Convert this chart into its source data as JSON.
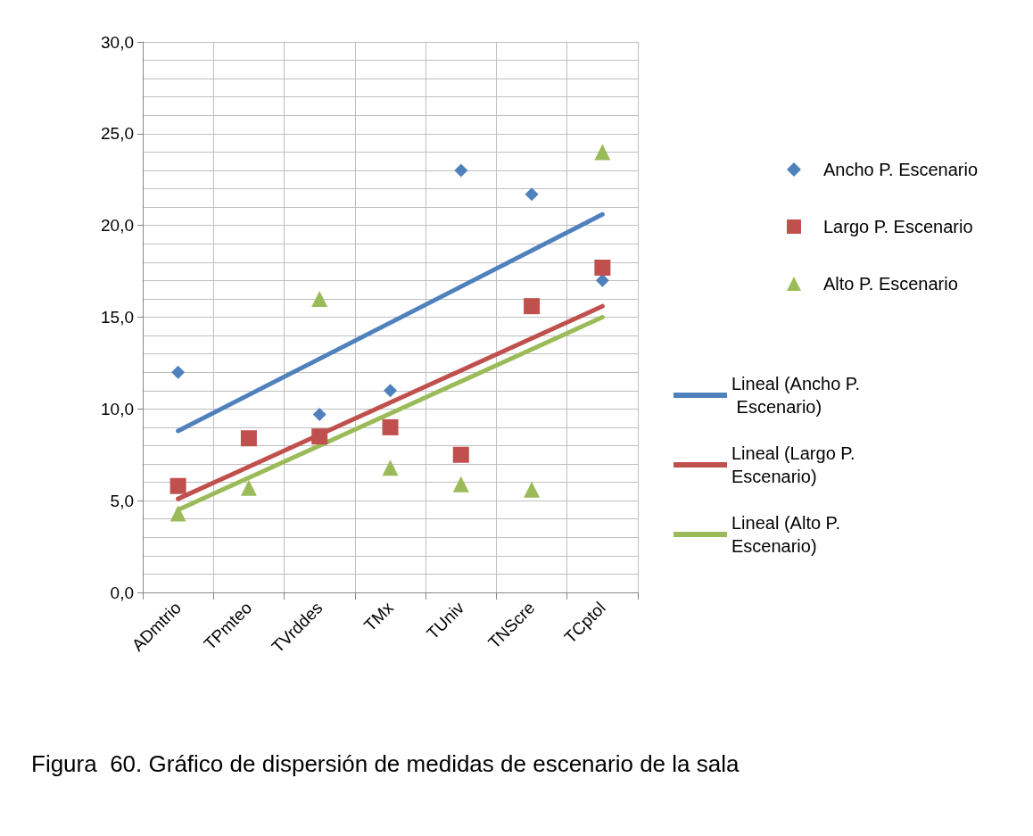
{
  "chart_data": {
    "type": "scatter",
    "categories": [
      "ADmtrio",
      "TPmteo",
      "TVrddes",
      "TMx",
      "TUniv",
      "TNScre",
      "TCptol"
    ],
    "series": [
      {
        "name": "Ancho P. Escenario",
        "color": "#4f81bd",
        "marker": "diamond",
        "values": [
          12.0,
          null,
          9.7,
          11.0,
          23.0,
          21.7,
          17.0
        ]
      },
      {
        "name": "Largo P. Escenario",
        "color": "#c0504d",
        "marker": "square",
        "values": [
          5.8,
          8.4,
          8.5,
          9.0,
          7.5,
          15.6,
          17.7
        ]
      },
      {
        "name": "Alto P. Escenario",
        "color": "#9bbb59",
        "marker": "triangle",
        "values": [
          4.3,
          5.7,
          16.0,
          6.8,
          5.9,
          5.6,
          24.0
        ]
      },
      {
        "name": "Lineal (Ancho P. Escenario)",
        "type": "line",
        "color": "#4f81bd",
        "marker": "none",
        "x": [
          "ADmtrio",
          "TCptol"
        ],
        "values": [
          8.8,
          20.6
        ]
      },
      {
        "name": "Lineal (Largo P. Escenario)",
        "type": "line",
        "color": "#c0504d",
        "marker": "none",
        "x": [
          "ADmtrio",
          "TCptol"
        ],
        "values": [
          5.1,
          15.6
        ]
      },
      {
        "name": "Lineal (Alto P. Escenario)",
        "type": "line",
        "color": "#9bbb59",
        "marker": "none",
        "x": [
          "ADmtrio",
          "TCptol"
        ],
        "values": [
          4.5,
          15.0
        ]
      }
    ],
    "ylim": [
      0,
      30
    ],
    "yticks": [
      {
        "value": 0,
        "label": "0,0"
      },
      {
        "value": 5,
        "label": "5,0"
      },
      {
        "value": 10,
        "label": "10,0"
      },
      {
        "value": 15,
        "label": "15,0"
      },
      {
        "value": 20,
        "label": "20,0"
      },
      {
        "value": 25,
        "label": "25,0"
      },
      {
        "value": 30,
        "label": "30,0"
      }
    ],
    "grid": true,
    "legend": "right",
    "annotations": [
      "Figura  60. Gráfico de dispersión de medidas de escenario de la sala"
    ]
  }
}
